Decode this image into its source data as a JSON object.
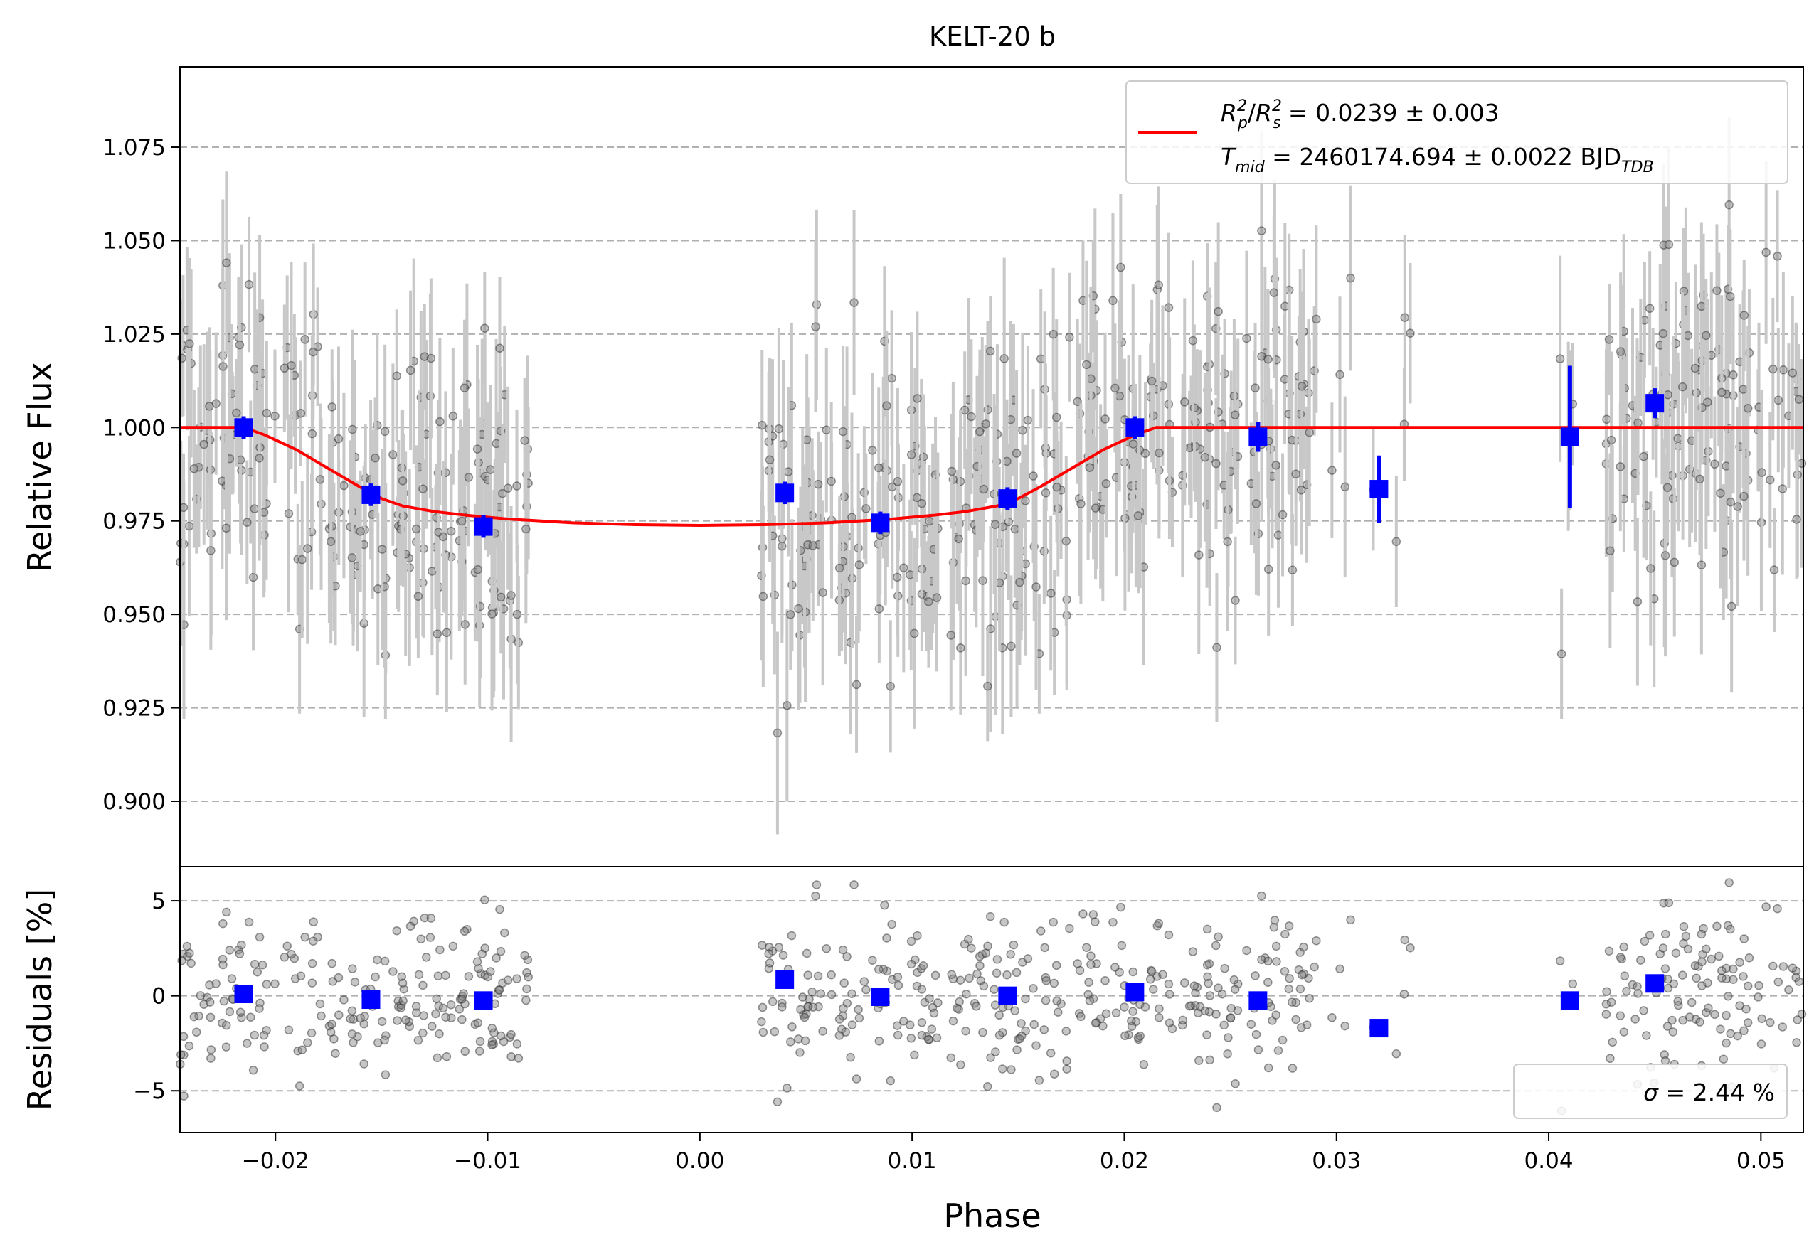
{
  "chart_data": [
    {
      "panel": "main",
      "type": "scatter",
      "title": "KELT-20 b",
      "xlabel": "",
      "ylabel": "Relative Flux",
      "xlim": [
        -0.0245,
        0.052
      ],
      "ylim": [
        0.8825,
        1.0965
      ],
      "grid": "horizontal-dashed",
      "yticks": [
        0.9,
        0.925,
        0.95,
        0.975,
        1.0,
        1.025,
        1.05,
        1.075
      ],
      "ytick_labels": [
        "0.900",
        "0.925",
        "0.950",
        "0.975",
        "1.000",
        "1.025",
        "1.050",
        "1.075"
      ],
      "legend": {
        "placement": "upper-right",
        "line1": {
          "R1": "R",
          "sub1": "p",
          "sup1": "2",
          "R2": "R",
          "sub2": "s",
          "sup2": "2",
          "rest": " = 0.0239 ± 0.003"
        },
        "line2": {
          "T": "T",
          "sub": "mid",
          "rest": " = 2460174.694 ± 0.0022 BJD",
          "unit_sub": "TDB"
        }
      },
      "model": {
        "color": "#ff0000",
        "points": [
          [
            -0.0245,
            1.0
          ],
          [
            -0.0215,
            1.0
          ],
          [
            -0.0205,
            0.998
          ],
          [
            -0.019,
            0.994
          ],
          [
            -0.0175,
            0.989
          ],
          [
            -0.016,
            0.984
          ],
          [
            -0.015,
            0.981
          ],
          [
            -0.014,
            0.979
          ],
          [
            -0.0125,
            0.9775
          ],
          [
            -0.011,
            0.9765
          ],
          [
            -0.009,
            0.9755
          ],
          [
            -0.006,
            0.9745
          ],
          [
            -0.003,
            0.974
          ],
          [
            0.0,
            0.9738
          ],
          [
            0.003,
            0.974
          ],
          [
            0.006,
            0.9745
          ],
          [
            0.009,
            0.9755
          ],
          [
            0.011,
            0.9765
          ],
          [
            0.0125,
            0.9775
          ],
          [
            0.014,
            0.979
          ],
          [
            0.015,
            0.981
          ],
          [
            0.016,
            0.984
          ],
          [
            0.0175,
            0.989
          ],
          [
            0.019,
            0.994
          ],
          [
            0.0205,
            0.998
          ],
          [
            0.0215,
            1.0
          ],
          [
            0.052,
            1.0
          ]
        ]
      },
      "binned": {
        "color": "#0000ff",
        "points": [
          {
            "x": -0.0215,
            "y": 1.0,
            "err": 0.003
          },
          {
            "x": -0.0155,
            "y": 0.982,
            "err": 0.003
          },
          {
            "x": -0.0102,
            "y": 0.9735,
            "err": 0.003
          },
          {
            "x": 0.004,
            "y": 0.9825,
            "err": 0.003
          },
          {
            "x": 0.0085,
            "y": 0.9745,
            "err": 0.003
          },
          {
            "x": 0.0145,
            "y": 0.981,
            "err": 0.003
          },
          {
            "x": 0.0205,
            "y": 1.0,
            "err": 0.003
          },
          {
            "x": 0.0263,
            "y": 0.9975,
            "err": 0.004
          },
          {
            "x": 0.032,
            "y": 0.9835,
            "err": 0.009
          },
          {
            "x": 0.041,
            "y": 0.9975,
            "err": 0.019
          },
          {
            "x": 0.045,
            "y": 1.0065,
            "err": 0.004
          }
        ]
      },
      "raw_description_colors": {
        "points": "#555555",
        "errorbars": "#c8c8c8"
      }
    },
    {
      "panel": "residuals",
      "type": "scatter",
      "xlabel": "Phase",
      "ylabel": "Residuals [%]",
      "xlim": [
        -0.0245,
        0.052
      ],
      "ylim": [
        -7.2,
        6.8
      ],
      "grid": "horizontal-dashed",
      "xticks": [
        -0.02,
        -0.01,
        0.0,
        0.01,
        0.02,
        0.03,
        0.04,
        0.05
      ],
      "xtick_labels": [
        "−0.02",
        "−0.01",
        "0.00",
        "0.01",
        "0.02",
        "0.03",
        "0.04",
        "0.05"
      ],
      "yticks": [
        -5,
        0,
        5
      ],
      "ytick_labels": [
        "−5",
        "0",
        "5"
      ],
      "legend": {
        "placement": "lower-right",
        "sigma_symbol": "σ",
        "text": " = 2.44 %"
      },
      "binned": {
        "color": "#0000ff",
        "points": [
          {
            "x": -0.0215,
            "y": 0.1
          },
          {
            "x": -0.0155,
            "y": -0.2
          },
          {
            "x": -0.0102,
            "y": -0.25
          },
          {
            "x": 0.004,
            "y": 0.85
          },
          {
            "x": 0.0085,
            "y": -0.05
          },
          {
            "x": 0.0145,
            "y": 0.0
          },
          {
            "x": 0.0205,
            "y": 0.2
          },
          {
            "x": 0.0263,
            "y": -0.25
          },
          {
            "x": 0.032,
            "y": -1.7
          },
          {
            "x": 0.041,
            "y": -0.25
          },
          {
            "x": 0.045,
            "y": 0.65
          }
        ]
      }
    }
  ]
}
